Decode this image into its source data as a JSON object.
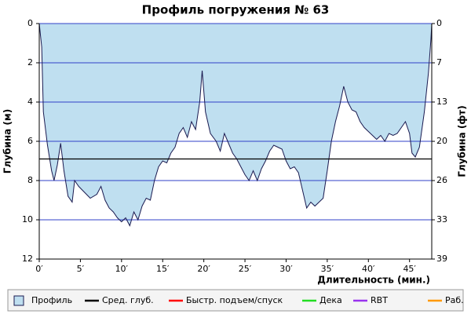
{
  "chart_data": {
    "type": "area",
    "title": "Профиль погружения № 63",
    "y_label": "Глубина (м)",
    "y2_label": "Глубина (фт)",
    "x_label": "Длительность (мин.)",
    "xlim": [
      0,
      47.7
    ],
    "xticks": [
      {
        "value": 0,
        "label": "0′"
      },
      {
        "value": 5,
        "label": "5′"
      },
      {
        "value": 10,
        "label": "10′"
      },
      {
        "value": 15,
        "label": "15′"
      },
      {
        "value": 20,
        "label": "20′"
      },
      {
        "value": 25,
        "label": "25′"
      },
      {
        "value": 30,
        "label": "30′"
      },
      {
        "value": 35,
        "label": "35′"
      },
      {
        "value": 40,
        "label": "40′"
      },
      {
        "value": 45,
        "label": "45′"
      }
    ],
    "ylim": [
      0,
      12
    ],
    "yticks": [
      0,
      2,
      4,
      6,
      8,
      10,
      12
    ],
    "y2lim": [
      0,
      39.37
    ],
    "y2ticks": [
      0,
      {
        "value": 6.56,
        "label": "7"
      },
      {
        "value": 13.12,
        "label": "13"
      },
      {
        "value": 19.69,
        "label": "20"
      },
      {
        "value": 26.25,
        "label": "26"
      },
      {
        "value": 32.81,
        "label": "33"
      },
      {
        "value": 39.37,
        "label": "39"
      }
    ],
    "grid": true,
    "grid_color": "#3040c8",
    "series": [
      {
        "name": "Профиль",
        "color": "#bfdff0",
        "x": [
          0,
          0.3,
          0.5,
          1,
          1.5,
          1.8,
          2.2,
          2.6,
          3,
          3.5,
          4,
          4.3,
          4.8,
          5.5,
          6.2,
          7,
          7.5,
          8,
          8.5,
          9,
          9.5,
          10,
          10.5,
          11,
          11.5,
          12,
          12.5,
          13,
          13.5,
          14,
          14.5,
          15,
          15.5,
          16,
          16.5,
          17,
          17.5,
          18,
          18.5,
          19,
          19.5,
          19.8,
          20.2,
          20.8,
          21.5,
          22,
          22.5,
          23,
          23.5,
          24,
          24.5,
          25,
          25.5,
          26,
          26.5,
          27,
          27.5,
          28,
          28.5,
          29,
          29.5,
          30,
          30.5,
          31,
          31.5,
          32,
          32.5,
          33,
          33.5,
          34,
          34.5,
          35,
          35.5,
          36,
          36.5,
          37,
          37.5,
          38,
          38.5,
          39,
          39.5,
          40,
          40.5,
          41,
          41.5,
          42,
          42.5,
          43,
          43.5,
          44,
          44.5,
          45,
          45.3,
          45.7,
          46.2,
          46.8,
          47.3,
          47.6,
          47.7
        ],
        "values": [
          0,
          1.2,
          4.5,
          6.2,
          7.5,
          8.0,
          7.2,
          6.1,
          7.5,
          8.8,
          9.1,
          8.0,
          8.3,
          8.6,
          8.9,
          8.7,
          8.3,
          9.0,
          9.4,
          9.6,
          9.9,
          10.1,
          9.9,
          10.3,
          9.6,
          10.0,
          9.3,
          8.9,
          9.0,
          8.0,
          7.3,
          7.0,
          7.1,
          6.6,
          6.3,
          5.6,
          5.3,
          5.8,
          5.0,
          5.4,
          4.0,
          2.4,
          4.5,
          5.6,
          6.0,
          6.5,
          5.6,
          6.1,
          6.6,
          6.9,
          7.3,
          7.7,
          8.0,
          7.5,
          8.0,
          7.4,
          7.0,
          6.5,
          6.2,
          6.3,
          6.4,
          7.0,
          7.4,
          7.3,
          7.6,
          8.5,
          9.4,
          9.1,
          9.3,
          9.1,
          8.9,
          7.5,
          6.0,
          5.0,
          4.2,
          3.2,
          4.0,
          4.4,
          4.5,
          5.0,
          5.3,
          5.5,
          5.7,
          5.9,
          5.7,
          6.0,
          5.6,
          5.7,
          5.6,
          5.3,
          5.0,
          5.6,
          6.6,
          6.8,
          6.3,
          4.5,
          2.5,
          0.8,
          0
        ]
      },
      {
        "name": "Сред. глуб.",
        "color": "#000000",
        "values": [
          6.9
        ]
      },
      {
        "name": "Быстр. подъем/спуск",
        "color": "#ff0000"
      },
      {
        "name": "Дека",
        "color": "#22dd22"
      },
      {
        "name": "RBT",
        "color": "#9933ee"
      },
      {
        "name": "Раб.",
        "color": "#ff9900"
      }
    ]
  }
}
